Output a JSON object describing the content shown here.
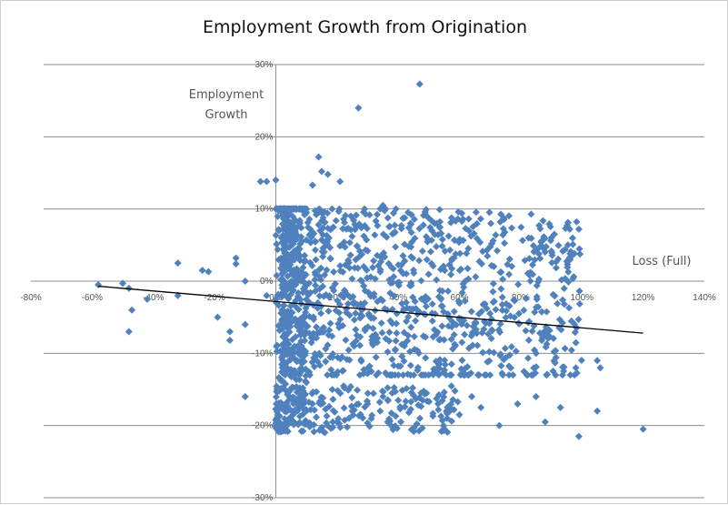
{
  "chart_data": {
    "type": "scatter",
    "title": "Employment Growth from Origination",
    "annotations": {
      "y_label": "Employment Growth",
      "x_label": "Loss (Full)"
    },
    "xlim": [
      -0.8,
      1.4
    ],
    "ylim": [
      -0.3,
      0.3
    ],
    "x_ticks": [
      -0.8,
      -0.6,
      -0.4,
      -0.2,
      0,
      0.2,
      0.4,
      0.6,
      0.8,
      1.0,
      1.2,
      1.4
    ],
    "x_tick_labels": [
      "-80%",
      "-60%",
      "-40%",
      "-20%",
      "0%",
      "20%",
      "40%",
      "60%",
      "80%",
      "100%",
      "120%",
      "140%"
    ],
    "y_ticks": [
      -0.3,
      -0.2,
      -0.1,
      0,
      0.1,
      0.2,
      0.3
    ],
    "y_tick_labels": [
      "-30%",
      "-20%",
      "-10%",
      "0%",
      "10%",
      "20%",
      "30%"
    ],
    "grid": {
      "horizontal": true,
      "vertical": false
    },
    "marker_color": "#4f81bd",
    "trendline": {
      "color": "#000000",
      "x": [
        -0.58,
        1.2
      ],
      "y": [
        -0.007,
        -0.072
      ]
    },
    "series": [
      {
        "points": [
          [
            0.47,
            0.273
          ],
          [
            0.27,
            0.24
          ],
          [
            0.14,
            0.172
          ],
          [
            0.15,
            0.152
          ],
          [
            0.17,
            0.148
          ],
          [
            0.12,
            0.133
          ],
          [
            0.21,
            0.138
          ],
          [
            -0.05,
            0.138
          ],
          [
            -0.03,
            0.138
          ],
          [
            0.0,
            0.14
          ],
          [
            0.35,
            0.105
          ],
          [
            0.0,
            0.1
          ],
          [
            0.01,
            0.098
          ],
          [
            0.03,
            0.095
          ],
          [
            0.28,
            0.075
          ],
          [
            0.44,
            0.08
          ],
          [
            0.51,
            0.07
          ],
          [
            0.62,
            0.073
          ],
          [
            0.99,
            0.072
          ],
          [
            0.96,
            0.072
          ],
          [
            0.91,
            0.065
          ],
          [
            -0.32,
            0.025
          ],
          [
            -0.24,
            0.015
          ],
          [
            -0.22,
            0.013
          ],
          [
            -0.13,
            0.032
          ],
          [
            -0.13,
            0.024
          ],
          [
            -0.1,
            0.0
          ],
          [
            -0.03,
            -0.02
          ],
          [
            -0.58,
            -0.005
          ],
          [
            -0.5,
            -0.003
          ],
          [
            -0.48,
            -0.01
          ],
          [
            -0.47,
            -0.04
          ],
          [
            -0.42,
            -0.025
          ],
          [
            -0.32,
            -0.02
          ],
          [
            -0.48,
            -0.07
          ],
          [
            -0.19,
            -0.05
          ],
          [
            -0.15,
            -0.082
          ],
          [
            -0.15,
            -0.07
          ],
          [
            -0.1,
            -0.06
          ],
          [
            -0.1,
            -0.16
          ],
          [
            1.05,
            -0.11
          ],
          [
            1.06,
            -0.12
          ],
          [
            1.05,
            -0.18
          ],
          [
            1.2,
            -0.205
          ],
          [
            0.99,
            -0.215
          ],
          [
            0.88,
            -0.195
          ],
          [
            0.35,
            -0.16
          ],
          [
            0.4,
            -0.165
          ],
          [
            0.45,
            -0.158
          ],
          [
            0.53,
            -0.17
          ],
          [
            0.6,
            -0.185
          ],
          [
            0.67,
            -0.175
          ],
          [
            0.73,
            -0.2
          ],
          [
            0.79,
            -0.17
          ],
          [
            0.85,
            -0.16
          ],
          [
            0.93,
            -0.175
          ],
          [
            0.98,
            -0.12
          ],
          [
            0.2,
            -0.195
          ],
          [
            0.25,
            -0.18
          ],
          [
            0.3,
            -0.17
          ],
          [
            0.38,
            -0.155
          ],
          [
            0.48,
            -0.165
          ],
          [
            0.56,
            -0.19
          ],
          [
            0.64,
            -0.16
          ]
        ]
      }
    ]
  }
}
